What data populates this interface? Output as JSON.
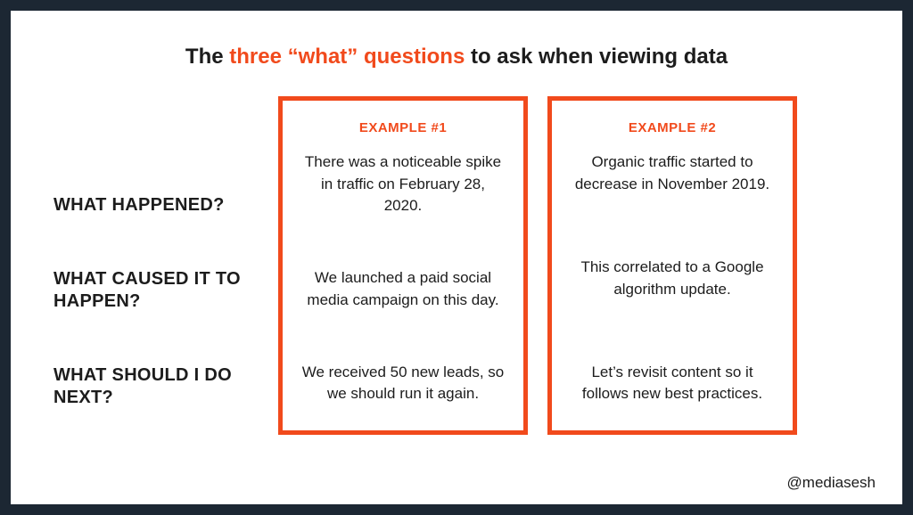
{
  "style": {
    "frame_color": "#1c2733",
    "bg": "#ffffff",
    "accent": "#f14a1c",
    "box_border": "#f14a1c",
    "text_color": "#1c1c1c"
  },
  "title": {
    "pre": "The ",
    "accent": "three “what” questions",
    "post": " to ask when viewing data"
  },
  "questions": [
    "WHAT HAPPENED?",
    "WHAT CAUSED IT TO HAPPEN?",
    "WHAT SHOULD I DO NEXT?"
  ],
  "examples": [
    {
      "header": "EXAMPLE #1",
      "answers": [
        "There was a noticeable spike in traffic on February 28, 2020.",
        "We launched a paid social media campaign on this day.",
        "We received 50 new leads, so we should run it again."
      ]
    },
    {
      "header": "EXAMPLE #2",
      "answers": [
        "Organic traffic started to decrease in November 2019.",
        "This correlated to a Google algorithm update.",
        "Let’s revisit content so it follows new best practices."
      ]
    }
  ],
  "credit": "@mediasesh"
}
